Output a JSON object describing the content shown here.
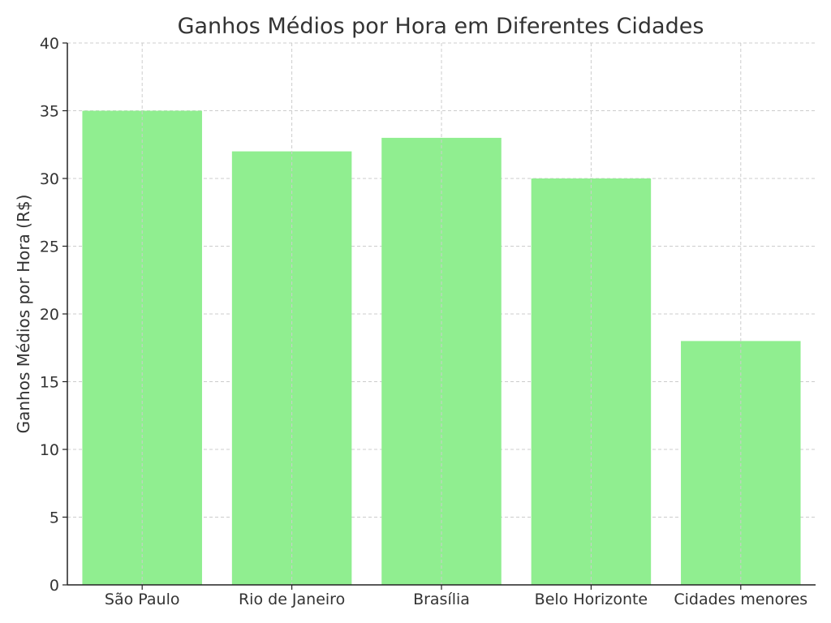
{
  "chart_data": {
    "type": "bar",
    "title": "Ganhos Médios por Hora em Diferentes Cidades",
    "xlabel": "",
    "ylabel": "Ganhos Médios por Hora (R$)",
    "categories": [
      "São Paulo",
      "Rio de Janeiro",
      "Brasília",
      "Belo Horizonte",
      "Cidades menores"
    ],
    "values": [
      35,
      32,
      33,
      30,
      18
    ],
    "ylim": [
      0,
      40
    ],
    "yticks": [
      0,
      5,
      10,
      15,
      20,
      25,
      30,
      35,
      40
    ],
    "grid": true,
    "bar_color": "#90ee90"
  }
}
